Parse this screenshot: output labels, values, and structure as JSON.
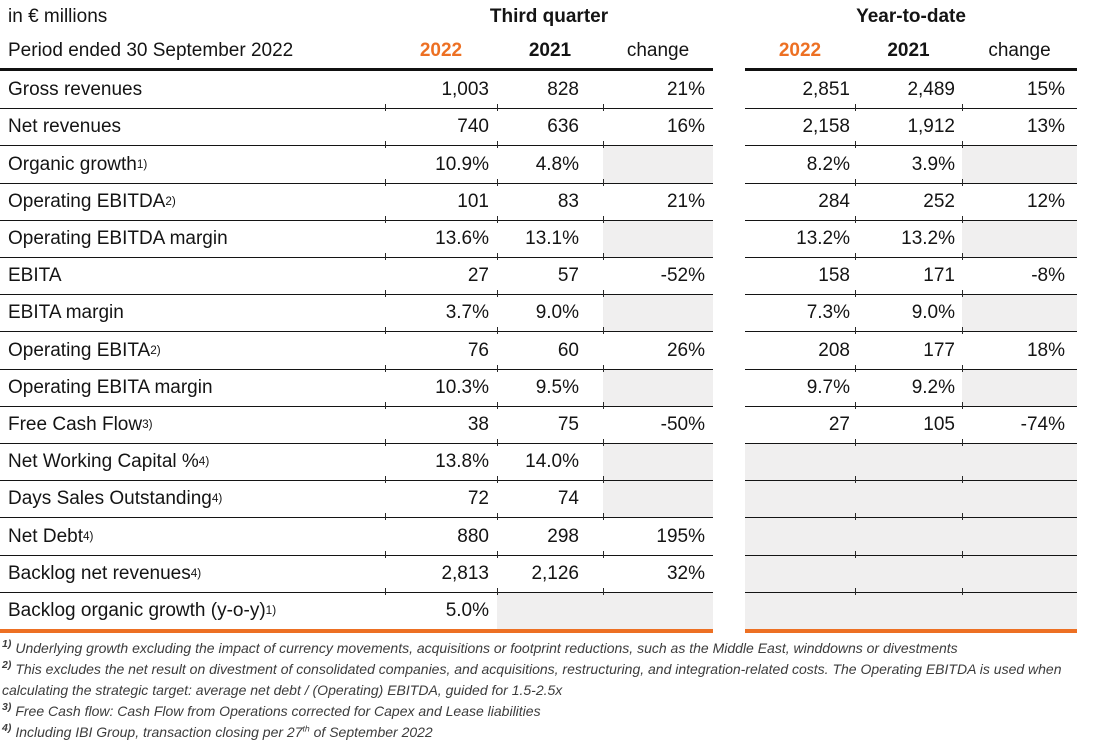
{
  "header": {
    "unit_label": "in € millions",
    "period_label": "Period ended 30 September 2022",
    "group_third_quarter": "Third quarter",
    "group_year_to_date": "Year-to-date",
    "col_2022": "2022",
    "col_2021": "2021",
    "col_change": "change"
  },
  "colors": {
    "accent_orange": "#ED7023",
    "shaded_cell": "#F0EFEF"
  },
  "rows": [
    {
      "label": "Gross revenues",
      "sup": "",
      "cells": [
        "1,003",
        "828",
        "21%",
        "2,851",
        "2,489",
        "15%"
      ]
    },
    {
      "label": "Net revenues",
      "sup": "",
      "cells": [
        "740",
        "636",
        "16%",
        "2,158",
        "1,912",
        "13%"
      ]
    },
    {
      "label": "Organic growth",
      "sup": "1)",
      "cells": [
        "10.9%",
        "4.8%",
        null,
        "8.2%",
        "3.9%",
        null
      ]
    },
    {
      "label": "Operating EBITDA",
      "sup": "2)",
      "cells": [
        "101",
        "83",
        "21%",
        "284",
        "252",
        "12%"
      ]
    },
    {
      "label": "Operating EBITDA margin",
      "sup": "",
      "cells": [
        "13.6%",
        "13.1%",
        null,
        "13.2%",
        "13.2%",
        null
      ]
    },
    {
      "label": "EBITA",
      "sup": "",
      "cells": [
        "27",
        "57",
        "-52%",
        "158",
        "171",
        "-8%"
      ]
    },
    {
      "label": "EBITA margin",
      "sup": "",
      "cells": [
        "3.7%",
        "9.0%",
        null,
        "7.3%",
        "9.0%",
        null
      ]
    },
    {
      "label": "Operating EBITA",
      "sup": "2)",
      "cells": [
        "76",
        "60",
        "26%",
        "208",
        "177",
        "18%"
      ]
    },
    {
      "label": "Operating EBITA margin",
      "sup": "",
      "cells": [
        "10.3%",
        "9.5%",
        null,
        "9.7%",
        "9.2%",
        null
      ]
    },
    {
      "label": "Free Cash Flow",
      "sup": "3)",
      "cells": [
        "38",
        "75",
        "-50%",
        "27",
        "105",
        "-74%"
      ]
    },
    {
      "label": "Net Working Capital %",
      "sup": "4)",
      "cells": [
        "13.8%",
        "14.0%",
        null,
        null,
        null,
        null
      ]
    },
    {
      "label": "Days Sales Outstanding",
      "sup": "4)",
      "cells": [
        "72",
        "74",
        null,
        null,
        null,
        null
      ]
    },
    {
      "label": "Net Debt",
      "sup": "4)",
      "cells": [
        "880",
        "298",
        "195%",
        null,
        null,
        null
      ]
    },
    {
      "label": "Backlog net revenues",
      "sup": "4)",
      "cells": [
        "2,813",
        "2,126",
        "32%",
        null,
        null,
        null
      ]
    },
    {
      "label": "Backlog organic growth (y-o-y)",
      "sup": "1)",
      "cells": [
        "5.0%",
        null,
        null,
        null,
        null,
        null
      ]
    }
  ],
  "footnotes": [
    {
      "marker": "1)",
      "parts": [
        {
          "t": "Underlying growth excluding the impact of currency movements, acquisitions or footprint reductions, such as the Middle East, winddowns or divestments"
        }
      ]
    },
    {
      "marker": "2)",
      "parts": [
        {
          "t": "This excludes the net result on divestment of consolidated companies, and acquisitions, restructuring, and integration-related costs. The Operating EBITDA is used when calculating the strategic target: average net debt / (Operating) EBITDA, guided for 1.5-2.5x"
        }
      ]
    },
    {
      "marker": "3)",
      "parts": [
        {
          "t": "Free Cash flow: Cash Flow from Operations corrected for Capex and Lease liabilities"
        }
      ]
    },
    {
      "marker": "4)",
      "parts": [
        {
          "t": "Including IBI Group, transaction closing per 27"
        },
        {
          "sup": "th"
        },
        {
          "t": " of September 2022"
        }
      ]
    }
  ]
}
